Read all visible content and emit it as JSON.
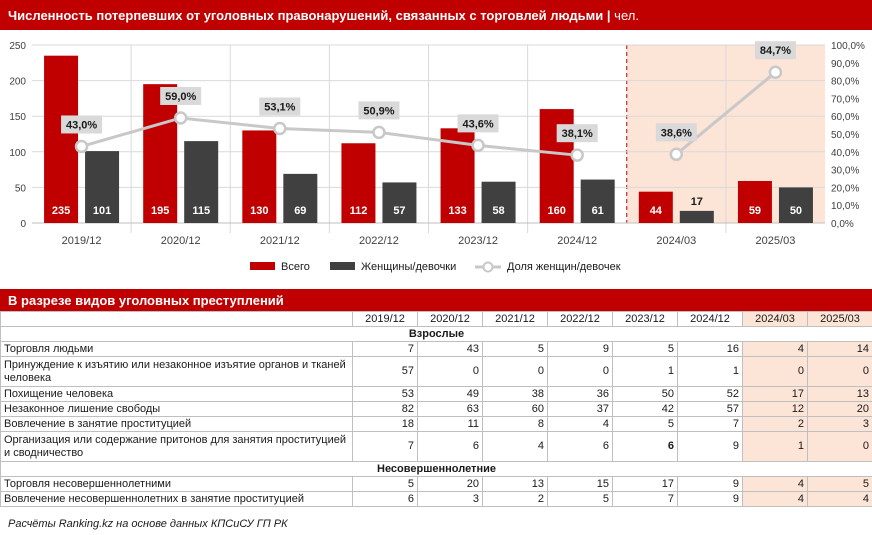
{
  "header": {
    "title": "Численность потерпевших от уголовных правонарушений, связанных с торговлей людьми",
    "separator": "|",
    "unit": "чел."
  },
  "chart_data": {
    "type": "bar",
    "categories": [
      "2019/12",
      "2020/12",
      "2021/12",
      "2022/12",
      "2023/12",
      "2024/12",
      "2024/03",
      "2025/03"
    ],
    "series": [
      {
        "name": "Всего",
        "type": "bar",
        "color": "#c00000",
        "values": [
          235,
          195,
          130,
          112,
          133,
          160,
          44,
          59
        ]
      },
      {
        "name": "Женщины/девочки",
        "type": "bar",
        "color": "#404040",
        "values": [
          101,
          115,
          69,
          57,
          58,
          61,
          17,
          50
        ]
      },
      {
        "name": "Доля женщин/девочек",
        "type": "line",
        "axis": "right",
        "color": "#c8c8c8",
        "values": [
          43.0,
          59.0,
          53.1,
          50.9,
          43.6,
          38.1,
          38.6,
          84.7
        ]
      }
    ],
    "share_labels": [
      "43,0%",
      "59,0%",
      "53,1%",
      "50,9%",
      "43,6%",
      "38,1%",
      "38,6%",
      "84,7%"
    ],
    "ylim": [
      0,
      250
    ],
    "yticks": [
      "0",
      "50",
      "100",
      "150",
      "200",
      "250"
    ],
    "y2lim": [
      0,
      100
    ],
    "y2ticks": [
      "0,0%",
      "10,0%",
      "20,0%",
      "30,0%",
      "40,0%",
      "50,0%",
      "60,0%",
      "70,0%",
      "80,0%",
      "90,0%",
      "100,0%"
    ],
    "line_segments": [
      [
        0,
        5
      ],
      [
        6,
        7
      ]
    ],
    "highlight_categories": [
      6,
      7
    ],
    "highlight_color": "#fce4d6",
    "grid": true,
    "legend_placement": "bottom"
  },
  "table": {
    "title": "В разрезе видов уголовных преступлений",
    "columns": [
      "2019/12",
      "2020/12",
      "2021/12",
      "2022/12",
      "2023/12",
      "2024/12",
      "2024/03",
      "2025/03"
    ],
    "groups": [
      {
        "label": "Взрослые",
        "rows": [
          {
            "label": "Торговля людьми",
            "values": [
              "7",
              "43",
              "5",
              "9",
              "5",
              "16",
              "4",
              "14"
            ]
          },
          {
            "label": "Принуждение к изъятию или незаконное изъятие органов и тканей человека",
            "values": [
              "57",
              "0",
              "0",
              "0",
              "1",
              "1",
              "0",
              "0"
            ]
          },
          {
            "label": "Похищение человека",
            "values": [
              "53",
              "49",
              "38",
              "36",
              "50",
              "52",
              "17",
              "13"
            ]
          },
          {
            "label": "Незаконное лишение свободы",
            "values": [
              "82",
              "63",
              "60",
              "37",
              "42",
              "57",
              "12",
              "20"
            ]
          },
          {
            "label": "Вовлечение в занятие проституцией",
            "values": [
              "18",
              "11",
              "8",
              "4",
              "5",
              "7",
              "2",
              "3"
            ]
          },
          {
            "label": "Организация или содержание притонов для занятия проституцией и сводничество",
            "values": [
              "7",
              "6",
              "4",
              "6",
              "6",
              "9",
              "1",
              "0"
            ]
          }
        ]
      },
      {
        "label": "Несовершеннолетние",
        "rows": [
          {
            "label": "Торговля несовершеннолетними",
            "values": [
              "5",
              "20",
              "13",
              "15",
              "17",
              "9",
              "4",
              "5"
            ]
          },
          {
            "label": "Вовлечение несовершеннолетних в занятие проституцией",
            "values": [
              "6",
              "3",
              "2",
              "5",
              "7",
              "9",
              "4",
              "4"
            ]
          }
        ]
      }
    ]
  },
  "footer": {
    "source": "Расчёты Ranking.kz на основе данных КПСиСУ ГП РК"
  }
}
